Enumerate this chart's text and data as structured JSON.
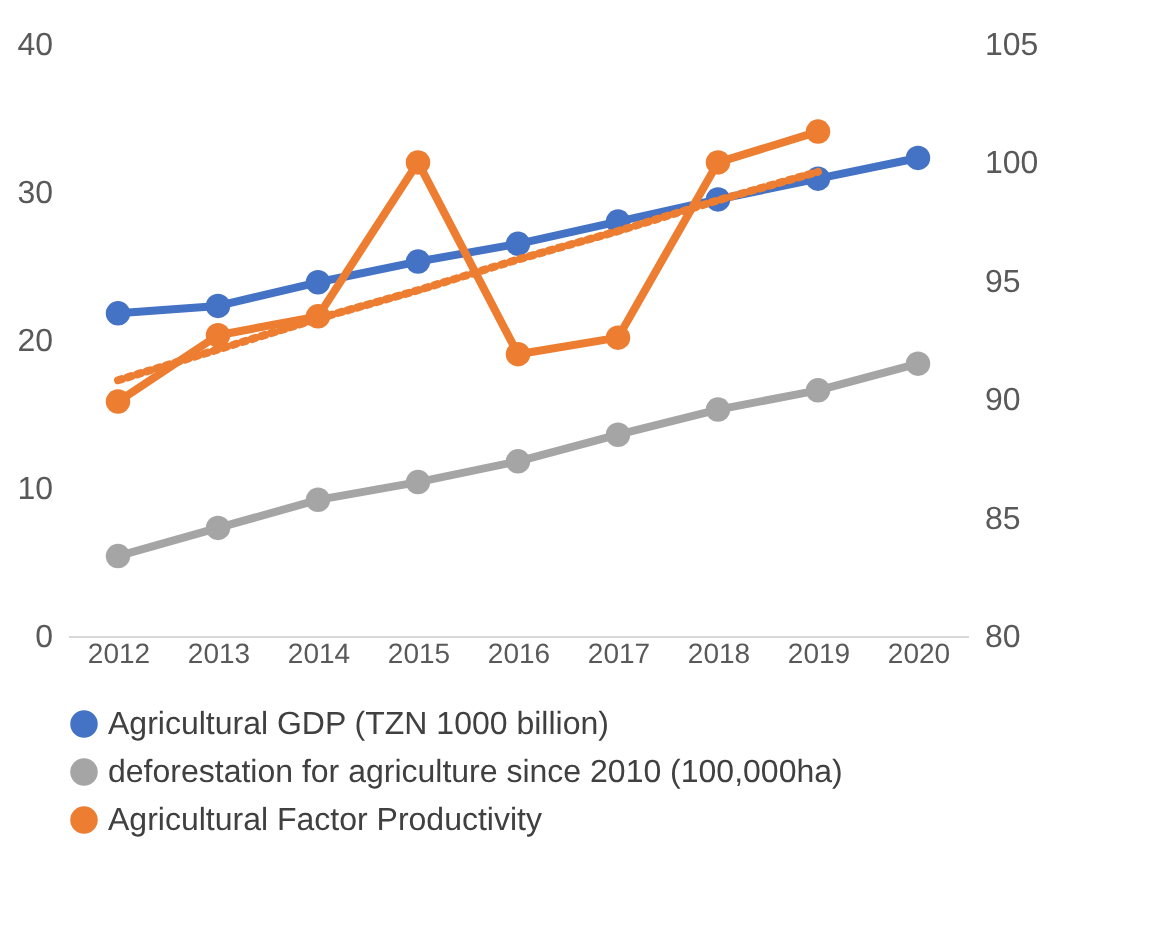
{
  "chart_data": {
    "type": "line",
    "categories": [
      "2012",
      "2013",
      "2014",
      "2015",
      "2016",
      "2017",
      "2018",
      "2019",
      "2020"
    ],
    "series": [
      {
        "name": "Agricultural GDP (TZN 1000 billion)",
        "color": "#4472c4",
        "values": [
          21.8,
          22.3,
          23.9,
          25.3,
          26.5,
          28.0,
          29.5,
          30.9,
          32.3
        ]
      },
      {
        "name": "deforestation for agriculture since 2010 (100,000ha)",
        "color": "#a5a5a5",
        "values": [
          5.4,
          7.3,
          9.2,
          10.4,
          11.8,
          13.6,
          15.3,
          16.6,
          18.4
        ]
      },
      {
        "name": "Agricultural Factor Productivity",
        "color": "#ed7d31",
        "axis": "y2",
        "values": [
          89.9,
          92.7,
          93.5,
          100.0,
          91.9,
          92.6,
          100.0,
          101.3,
          null
        ]
      },
      {
        "type": "line",
        "color": "#ed7d31",
        "axis": "y2",
        "line_style": "dotted",
        "marker": "none",
        "values": [
          90.8,
          92.1,
          93.4,
          94.6,
          95.9,
          97.1,
          98.4,
          99.6,
          null
        ]
      }
    ],
    "ylim": [
      0,
      40
    ],
    "yticks": [
      0,
      10,
      20,
      30,
      40
    ],
    "y2lim": [
      80,
      105
    ],
    "y2ticks": [
      80,
      85,
      90,
      95,
      100,
      105
    ],
    "marker": "circle",
    "line_style": "solid",
    "grid": false,
    "legend": "bottom"
  }
}
